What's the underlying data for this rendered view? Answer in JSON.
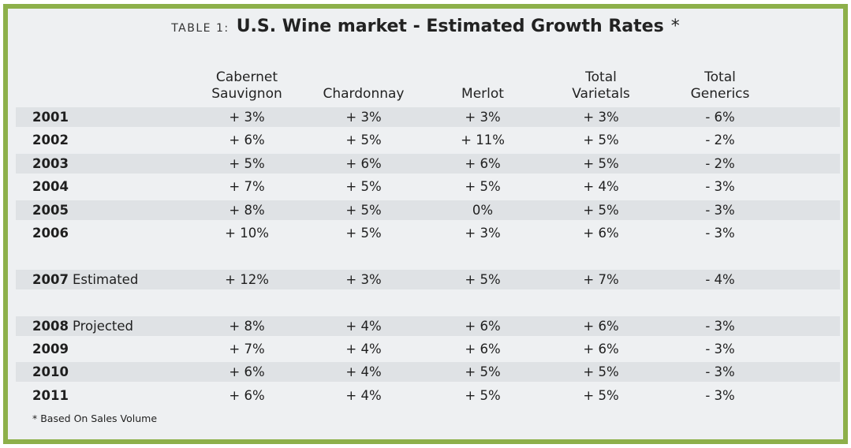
{
  "title": {
    "prefix": "TABLE 1:",
    "main": "U.S. Wine market - Estimated Growth Rates",
    "marker": "*"
  },
  "footnote": "* Based On Sales Volume",
  "chart_data": {
    "type": "table",
    "columns": [
      {
        "line1": "Cabernet",
        "line2": "Sauvignon"
      },
      {
        "line1": "",
        "line2": "Chardonnay"
      },
      {
        "line1": "",
        "line2": "Merlot"
      },
      {
        "line1": "Total",
        "line2": "Varietals"
      },
      {
        "line1": "Total",
        "line2": "Generics"
      }
    ],
    "rows": [
      {
        "year": "2001",
        "note": "",
        "values": [
          "+ 3%",
          "+ 3%",
          "+ 3%",
          "+ 3%",
          "- 6%"
        ],
        "shaded": true
      },
      {
        "year": "2002",
        "note": "",
        "values": [
          "+ 6%",
          "+ 5%",
          "+ 11%",
          "+ 5%",
          "- 2%"
        ],
        "shaded": false
      },
      {
        "year": "2003",
        "note": "",
        "values": [
          "+ 5%",
          "+ 6%",
          "+ 6%",
          "+ 5%",
          "- 2%"
        ],
        "shaded": true
      },
      {
        "year": "2004",
        "note": "",
        "values": [
          "+ 7%",
          "+ 5%",
          "+ 5%",
          "+ 4%",
          "- 3%"
        ],
        "shaded": false
      },
      {
        "year": "2005",
        "note": "",
        "values": [
          "+ 8%",
          "+ 5%",
          "0%",
          "+ 5%",
          "- 3%"
        ],
        "shaded": true
      },
      {
        "year": "2006",
        "note": "",
        "values": [
          "+ 10%",
          "+ 5%",
          "+ 3%",
          "+ 6%",
          "- 3%"
        ],
        "shaded": false
      },
      {
        "year": "2007",
        "note": "Estimated",
        "values": [
          "+ 12%",
          "+ 3%",
          "+ 5%",
          "+ 7%",
          "- 4%"
        ],
        "shaded": true
      },
      {
        "year": "2008",
        "note": "Projected",
        "values": [
          "+ 8%",
          "+ 4%",
          "+ 6%",
          "+ 6%",
          "- 3%"
        ],
        "shaded": true
      },
      {
        "year": "2009",
        "note": "",
        "values": [
          "+ 7%",
          "+ 4%",
          "+ 6%",
          "+ 6%",
          "- 3%"
        ],
        "shaded": false
      },
      {
        "year": "2010",
        "note": "",
        "values": [
          "+ 6%",
          "+ 4%",
          "+ 5%",
          "+ 5%",
          "- 3%"
        ],
        "shaded": true
      },
      {
        "year": "2011",
        "note": "",
        "values": [
          "+ 6%",
          "+ 4%",
          "+ 5%",
          "+ 5%",
          "- 3%"
        ],
        "shaded": false
      }
    ]
  },
  "colors": {
    "border": "#8db04a",
    "background": "#eef0f2",
    "row_shade": "#dfe2e5",
    "text": "#1f1f1f"
  }
}
